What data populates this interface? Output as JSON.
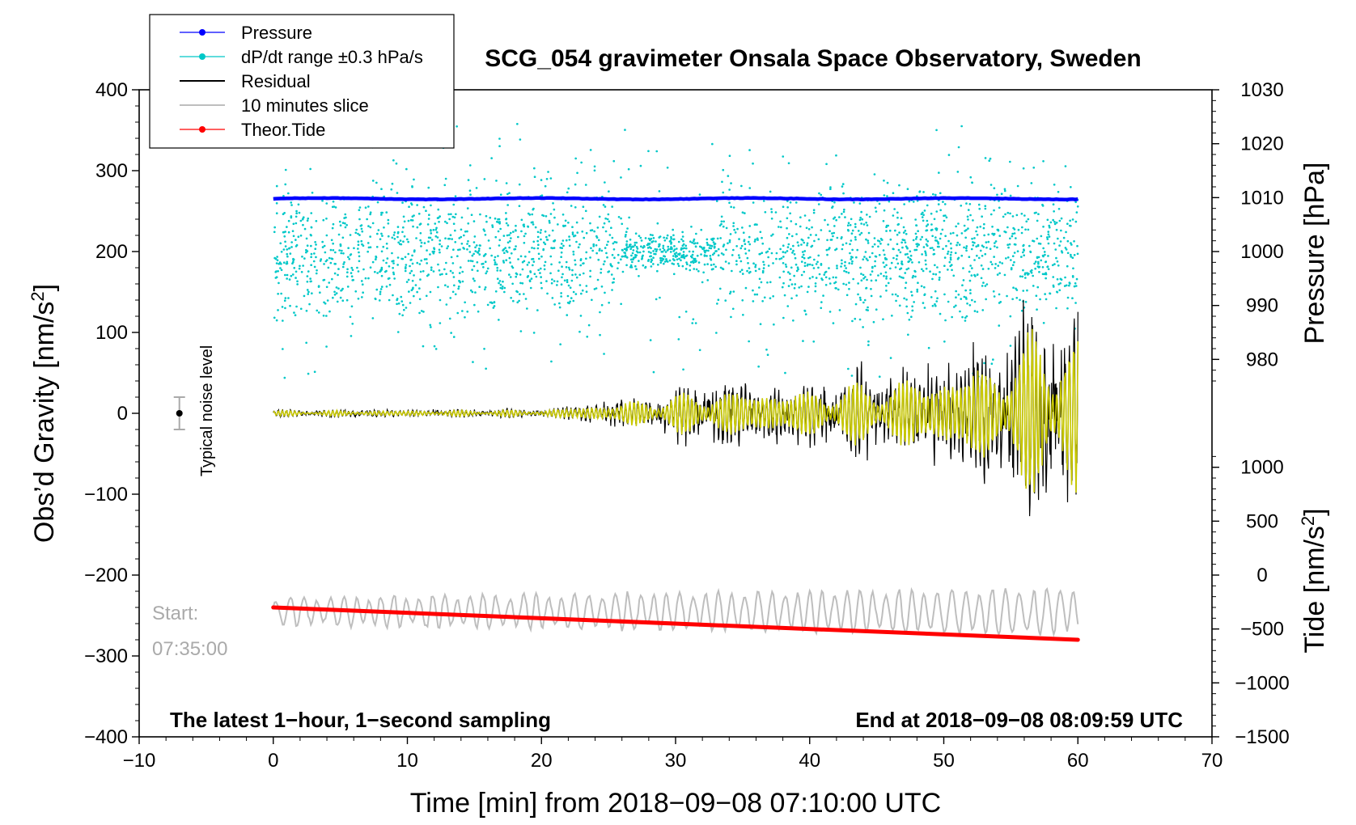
{
  "chart_data": {
    "type": "line",
    "title": "SCG_054 gravimeter Onsala Space Observatory, Sweden",
    "xlabel": "Time [min] from 2018−09−08 07:10:00 UTC",
    "ylabel_left": "Obs’d Gravity [nm/s²]",
    "ylabel_left_main": "Obs’d Gravity [nm/s",
    "ylabel_left_sup": "2",
    "ylabel_left_end": "]",
    "ylabel_right_pressure": "Pressure [hPa]",
    "ylabel_right_tide": "Tide [nm/s²]",
    "ylabel_right_tide_main": "Tide [nm/s",
    "ylabel_right_tide_sup": "2",
    "ylabel_right_tide_end": "]",
    "xlim": [
      -10,
      70
    ],
    "ylim_left": [
      -400,
      400
    ],
    "xticks": [
      -10,
      0,
      10,
      20,
      30,
      40,
      50,
      60,
      70
    ],
    "xtick_labels": [
      "−10",
      "0",
      "10",
      "20",
      "30",
      "40",
      "50",
      "60",
      "70"
    ],
    "yticks_left": [
      400,
      300,
      200,
      100,
      0,
      -100,
      -200,
      -300,
      -400
    ],
    "ytick_labels_left": [
      "400",
      "300",
      "200",
      "100",
      "0",
      "−100",
      "−200",
      "−300",
      "−400"
    ],
    "pressure_axis": {
      "ticks": [
        1030,
        1020,
        1010,
        1000,
        990,
        980
      ],
      "tick_labels": [
        "1030",
        "1020",
        "1010",
        "1000",
        "990",
        "980"
      ],
      "gravity_at_1030": 400,
      "gravity_per_hPa": 6.667
    },
    "tide_axis": {
      "ticks": [
        1000,
        500,
        0,
        -500,
        -1000,
        -1500
      ],
      "tick_labels": [
        "1000",
        "500",
        "0",
        "−500",
        "−1000",
        "−1500"
      ],
      "gravity_at_0": -200,
      "gravity_per_unit": 0.1333
    },
    "legend": {
      "placement": "top-left",
      "entries": [
        {
          "label": "Pressure",
          "color": "#0000ff",
          "marker": "dot-line"
        },
        {
          "label": "dP/dt range ±0.3 hPa/s",
          "color": "#00c8c8",
          "marker": "dot-line"
        },
        {
          "label": "Residual",
          "color": "#000000",
          "marker": "line"
        },
        {
          "label": "10 minutes slice",
          "color": "#bebebe",
          "marker": "line"
        },
        {
          "label": "Theor.Tide",
          "color": "#ff0000",
          "marker": "dot-line"
        }
      ]
    },
    "series": [
      {
        "name": "Pressure",
        "color": "#0000ff",
        "unit": "hPa",
        "x_range": [
          0,
          60
        ],
        "value_approx": 1009.8
      },
      {
        "name": "dP/dt range ±0.3 hPa/s",
        "color": "#00c8c8",
        "style": "scatter",
        "x_range": [
          0,
          60
        ],
        "center_gravity": 200,
        "spread_gravity": [
          50,
          390
        ]
      },
      {
        "name": "Residual",
        "color": "#000000",
        "x_range": [
          0,
          60
        ],
        "envelope": [
          {
            "x": 0,
            "amp": 5
          },
          {
            "x": 20,
            "amp": 6
          },
          {
            "x": 25,
            "amp": 18
          },
          {
            "x": 33,
            "amp": 45
          },
          {
            "x": 40,
            "amp": 45
          },
          {
            "x": 50,
            "amp": 75
          },
          {
            "x": 55,
            "amp": 110
          },
          {
            "x": 57,
            "amp": 160
          },
          {
            "x": 60,
            "amp": 150
          }
        ]
      },
      {
        "name": "Filtered residual",
        "color": "#c8c800",
        "x_range": [
          0,
          60
        ]
      },
      {
        "name": "10 minutes slice",
        "color": "#bebebe",
        "x_range": [
          0,
          60
        ],
        "center_gravity": -245
      },
      {
        "name": "Theor.Tide",
        "color": "#ff0000",
        "unit": "nm/s²",
        "points": [
          [
            0,
            -240
          ],
          [
            60,
            -280
          ]
        ]
      }
    ],
    "noise_marker": {
      "x": -7,
      "y": 0,
      "err": 20,
      "label": "Typical noise level"
    },
    "annotations": {
      "start_label": "Start:",
      "start_time": "07:35:00",
      "bottom_left": "The latest 1−hour, 1−second sampling",
      "bottom_right": "End at 2018−09−08 08:09:59 UTC"
    }
  }
}
